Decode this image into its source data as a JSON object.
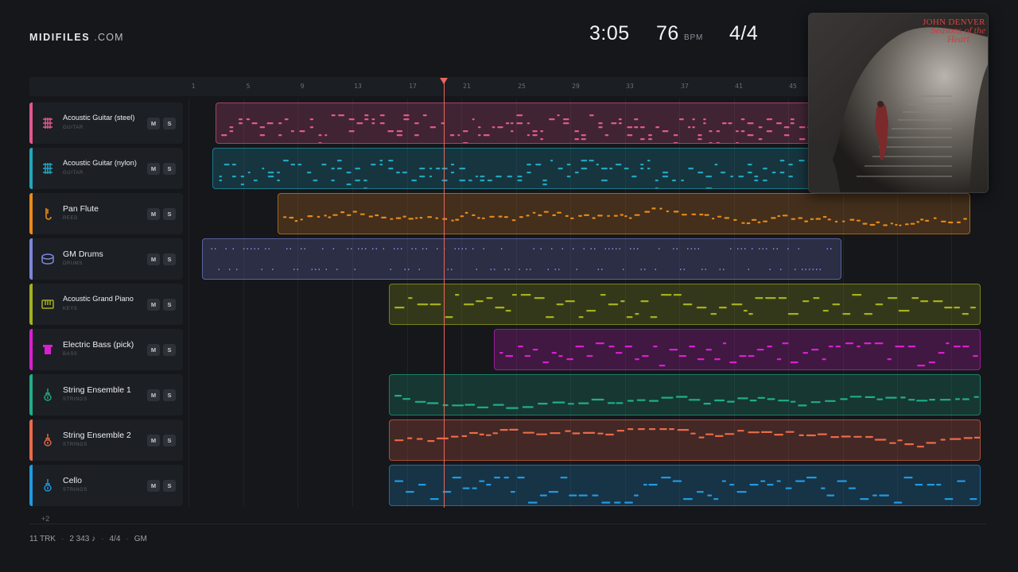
{
  "header": {
    "logo_main": "MIDIFILES",
    "logo_domain": ".COM",
    "duration": "3:05",
    "tempo": "76",
    "tempo_unit": "BPM",
    "time_signature": "4/4"
  },
  "ruler": {
    "ticks": [
      "1",
      "5",
      "9",
      "13",
      "17",
      "21",
      "25",
      "29",
      "33",
      "37",
      "41",
      "45"
    ]
  },
  "tracks": [
    {
      "name": "Acoustic Guitar (steel)",
      "category": "GUITAR",
      "color": "#e0588f",
      "icon": "guitar-fretboard-icon",
      "mute": "M",
      "solo": "S"
    },
    {
      "name": "Acoustic Guitar (nylon)",
      "category": "GUITAR",
      "color": "#22a6bd",
      "icon": "guitar-fretboard-icon",
      "mute": "M",
      "solo": "S"
    },
    {
      "name": "Pan Flute",
      "category": "REED",
      "color": "#e8891a",
      "icon": "flute-icon",
      "mute": "M",
      "solo": "S"
    },
    {
      "name": "GM Drums",
      "category": "DRUMS",
      "color": "#7c86d8",
      "icon": "drum-icon",
      "mute": "M",
      "solo": "S"
    },
    {
      "name": "Acoustic Grand Piano",
      "category": "KEYS",
      "color": "#a3b11d",
      "icon": "piano-keys-icon",
      "mute": "M",
      "solo": "S"
    },
    {
      "name": "Electric Bass (pick)",
      "category": "BASS",
      "color": "#d91fcf",
      "icon": "bass-amp-icon",
      "mute": "M",
      "solo": "S"
    },
    {
      "name": "String Ensemble 1",
      "category": "STRINGS",
      "color": "#1fae88",
      "icon": "violin-icon",
      "mute": "M",
      "solo": "S"
    },
    {
      "name": "String Ensemble 2",
      "category": "STRINGS",
      "color": "#ea6a48",
      "icon": "violin-icon",
      "mute": "M",
      "solo": "S"
    },
    {
      "name": "Cello",
      "category": "STRINGS",
      "color": "#1f9ae0",
      "icon": "cello-icon",
      "mute": "M",
      "solo": "S"
    }
  ],
  "more_tracks": "+2",
  "footer": {
    "tracks": "11 TRK",
    "notes": "2 343 ♪",
    "meter": "4/4",
    "standard": "GM"
  },
  "album": {
    "artist": "JOHN DENVER",
    "title": "Seasons of the Heart"
  }
}
